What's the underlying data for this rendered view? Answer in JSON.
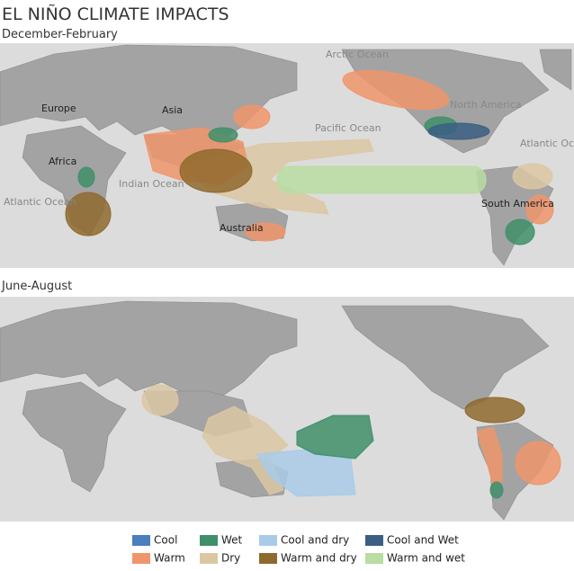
{
  "title": "EL NIÑO CLIMATE IMPACTS",
  "panels": [
    {
      "title": "December-February",
      "labels": [
        "Arctic Ocean",
        "Europe",
        "Asia",
        "Pacific Ocean",
        "North America",
        "Atlantic Ocean",
        "Africa",
        "Indian Ocean",
        "Atlantic Ocean",
        "Australia",
        "South America"
      ]
    },
    {
      "title": "June-August"
    }
  ],
  "legend": [
    {
      "name": "Cool",
      "color": "#4b7fbd"
    },
    {
      "name": "Warm",
      "color": "#f0956b"
    },
    {
      "name": "Wet",
      "color": "#3f8f6a"
    },
    {
      "name": "Dry",
      "color": "#dcc7a3"
    },
    {
      "name": "Cool and dry",
      "color": "#a9cbe8"
    },
    {
      "name": "Warm and dry",
      "color": "#8f6a2e"
    },
    {
      "name": "Cool and Wet",
      "color": "#3b5f82"
    },
    {
      "name": "Warm and wet",
      "color": "#b9dda2"
    }
  ]
}
